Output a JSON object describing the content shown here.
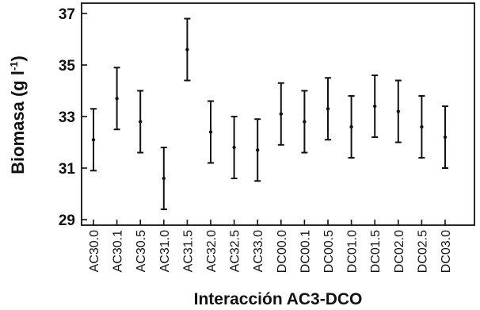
{
  "chart_data": {
    "type": "errorbar",
    "title": "",
    "xlabel": "Interacción AC3-DCO",
    "ylabel_main": "Biomasa (g l",
    "ylabel_sup": "-1",
    "ylabel_end": ")",
    "ylim": [
      29,
      37
    ],
    "yticks": [
      29,
      31,
      33,
      35,
      37
    ],
    "categories": [
      "AC30.0",
      "AC30.1",
      "AC30.5",
      "AC31.0",
      "AC31.5",
      "AC32.0",
      "AC32.5",
      "AC33.0",
      "DC00.0",
      "DC00.1",
      "DC00.5",
      "DC01.0",
      "DC01.5",
      "DC02.0",
      "DC02.5",
      "DC03.0"
    ],
    "means": [
      32.1,
      33.7,
      32.8,
      30.6,
      35.6,
      32.4,
      31.8,
      31.7,
      33.1,
      32.8,
      33.3,
      32.6,
      33.4,
      33.2,
      32.6,
      32.2
    ],
    "lower": [
      30.9,
      32.5,
      31.6,
      29.4,
      34.4,
      31.2,
      30.6,
      30.5,
      31.9,
      31.6,
      32.1,
      31.4,
      32.2,
      32.0,
      31.4,
      31.0
    ],
    "upper": [
      33.3,
      34.9,
      34.0,
      31.8,
      36.8,
      33.6,
      33.0,
      32.9,
      34.3,
      34.0,
      34.5,
      33.8,
      34.6,
      34.4,
      33.8,
      33.4
    ],
    "grid": false
  }
}
